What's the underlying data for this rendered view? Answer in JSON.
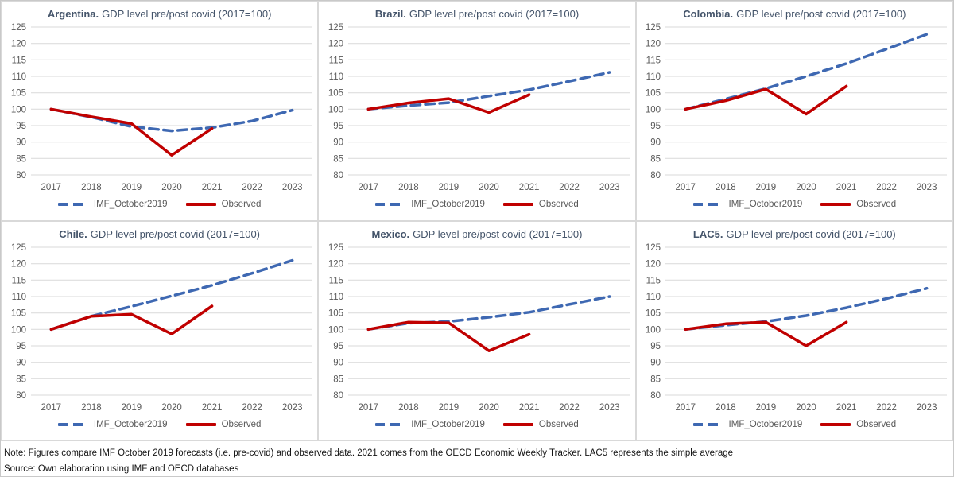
{
  "colors": {
    "imf_line": "#3E68B2",
    "observed_line": "#C00000",
    "gridline": "#D9D9D9",
    "axis_text": "#595959",
    "title_text": "#44546A",
    "panel_border": "#D9D9D9"
  },
  "legend": {
    "imf_label": "IMF_October2019",
    "observed_label": "Observed"
  },
  "axes": {
    "x": [
      "2017",
      "2018",
      "2019",
      "2020",
      "2021",
      "2022",
      "2023"
    ],
    "y_ticks": [
      125,
      120,
      115,
      110,
      105,
      100,
      95,
      90,
      85,
      80
    ],
    "ylim": [
      80,
      125
    ],
    "grid": true,
    "legend_position": "bottom"
  },
  "chart_data": [
    {
      "type": "line",
      "title_bold": "Argentina.",
      "title_rest": "GDP level pre/post covid (2017=100)",
      "x": [
        "2017",
        "2018",
        "2019",
        "2020",
        "2021",
        "2022",
        "2023"
      ],
      "ylim": [
        80,
        125
      ],
      "series": [
        {
          "name": "IMF_October2019",
          "style": "dashed",
          "color": "#3E68B2",
          "data_name": "imf-forecast-line",
          "values": [
            100,
            97.6,
            94.7,
            93.4,
            94.4,
            96.4,
            99.7
          ]
        },
        {
          "name": "Observed",
          "style": "solid",
          "color": "#C00000",
          "data_name": "observed-line",
          "values": [
            100,
            97.7,
            95.6,
            86.0,
            94.1,
            null,
            null
          ]
        }
      ]
    },
    {
      "type": "line",
      "title_bold": "Brazil.",
      "title_rest": "GDP level pre/post covid (2017=100)",
      "x": [
        "2017",
        "2018",
        "2019",
        "2020",
        "2021",
        "2022",
        "2023"
      ],
      "ylim": [
        80,
        125
      ],
      "series": [
        {
          "name": "IMF_October2019",
          "style": "dashed",
          "color": "#3E68B2",
          "data_name": "imf-forecast-line",
          "values": [
            100,
            101.1,
            102.0,
            104.0,
            105.9,
            108.5,
            111.2
          ]
        },
        {
          "name": "Observed",
          "style": "solid",
          "color": "#C00000",
          "data_name": "observed-line",
          "values": [
            100,
            101.9,
            103.2,
            99.0,
            104.4,
            null,
            null
          ]
        }
      ]
    },
    {
      "type": "line",
      "title_bold": "Colombia.",
      "title_rest": "GDP level pre/post covid (2017=100)",
      "x": [
        "2017",
        "2018",
        "2019",
        "2020",
        "2021",
        "2022",
        "2023"
      ],
      "ylim": [
        80,
        125
      ],
      "series": [
        {
          "name": "IMF_October2019",
          "style": "dashed",
          "color": "#3E68B2",
          "data_name": "imf-forecast-line",
          "values": [
            100,
            103.1,
            106.3,
            110.0,
            113.9,
            118.3,
            122.8
          ]
        },
        {
          "name": "Observed",
          "style": "solid",
          "color": "#C00000",
          "data_name": "observed-line",
          "values": [
            100,
            102.6,
            106.1,
            98.5,
            107.0,
            null,
            null
          ]
        }
      ]
    },
    {
      "type": "line",
      "title_bold": "Chile.",
      "title_rest": "GDP level pre/post covid (2017=100)",
      "x": [
        "2017",
        "2018",
        "2019",
        "2020",
        "2021",
        "2022",
        "2023"
      ],
      "ylim": [
        80,
        125
      ],
      "series": [
        {
          "name": "IMF_October2019",
          "style": "dashed",
          "color": "#3E68B2",
          "data_name": "imf-forecast-line",
          "values": [
            100,
            104.0,
            107.0,
            110.2,
            113.4,
            117.1,
            121.0
          ]
        },
        {
          "name": "Observed",
          "style": "solid",
          "color": "#C00000",
          "data_name": "observed-line",
          "values": [
            100,
            104.0,
            104.6,
            98.6,
            107.1,
            null,
            null
          ]
        }
      ]
    },
    {
      "type": "line",
      "title_bold": "Mexico.",
      "title_rest": "GDP level pre/post covid (2017=100)",
      "x": [
        "2017",
        "2018",
        "2019",
        "2020",
        "2021",
        "2022",
        "2023"
      ],
      "ylim": [
        80,
        125
      ],
      "series": [
        {
          "name": "IMF_October2019",
          "style": "dashed",
          "color": "#3E68B2",
          "data_name": "imf-forecast-line",
          "values": [
            100,
            101.9,
            102.4,
            103.7,
            105.2,
            107.6,
            110.0
          ]
        },
        {
          "name": "Observed",
          "style": "solid",
          "color": "#C00000",
          "data_name": "observed-line",
          "values": [
            100,
            102.2,
            102.0,
            93.5,
            98.5,
            null,
            null
          ]
        }
      ]
    },
    {
      "type": "line",
      "title_bold": "LAC5.",
      "title_rest": "GDP level pre/post covid (2017=100)",
      "x": [
        "2017",
        "2018",
        "2019",
        "2020",
        "2021",
        "2022",
        "2023"
      ],
      "ylim": [
        80,
        125
      ],
      "series": [
        {
          "name": "IMF_October2019",
          "style": "dashed",
          "color": "#3E68B2",
          "data_name": "imf-forecast-line",
          "values": [
            100,
            101.3,
            102.4,
            104.2,
            106.6,
            109.4,
            112.5
          ]
        },
        {
          "name": "Observed",
          "style": "solid",
          "color": "#C00000",
          "data_name": "observed-line",
          "values": [
            100,
            101.7,
            102.2,
            95.0,
            102.2,
            null,
            null
          ]
        }
      ]
    }
  ],
  "footer": {
    "note": "Note: Figures compare IMF October 2019 forecasts (i.e. pre-covid) and observed data. 2021 comes from the OECD Economic Weekly Tracker. LAC5 represents the simple average",
    "source": "Source: Own elaboration using IMF and OECD databases"
  }
}
